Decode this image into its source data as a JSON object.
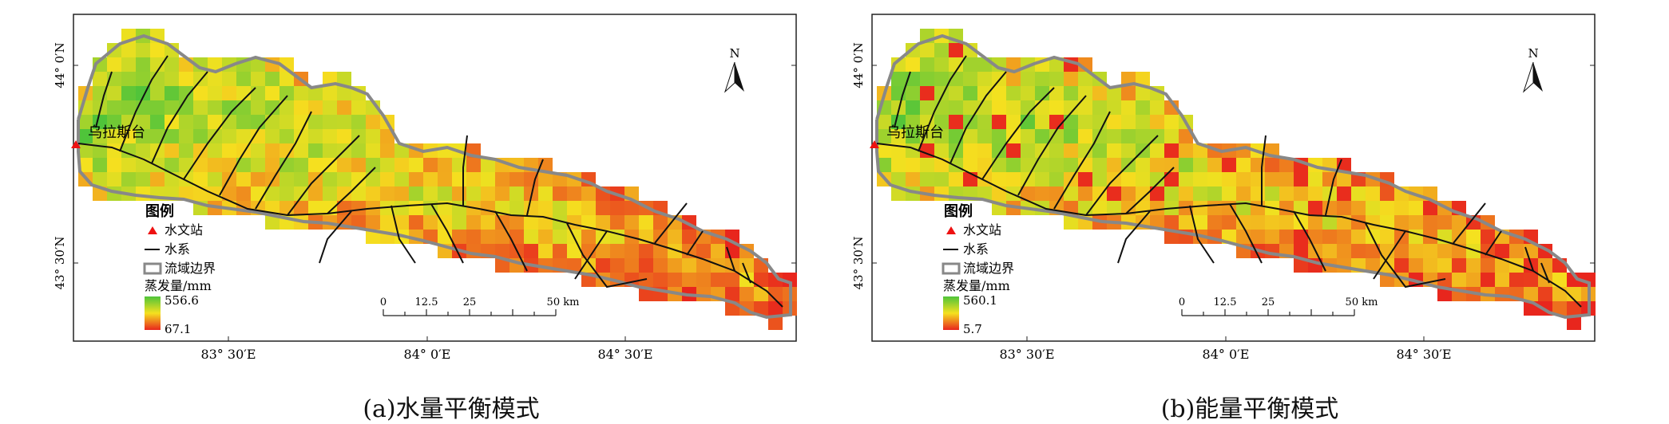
{
  "panels": [
    {
      "id": "a",
      "caption": "(a)水量平衡模式",
      "station_name": "乌拉斯台",
      "north_label": "N",
      "lat_labels": [
        "44° 0′N",
        "43° 30′N"
      ],
      "lon_labels": [
        "83° 30′E",
        "84° 0′E",
        "84° 30′E"
      ],
      "legend": {
        "title": "图例",
        "station": "水文站",
        "river": "水系",
        "boundary": "流域边界",
        "ramp_title": "蒸发量/mm",
        "max": "556.6",
        "min": "67.1"
      },
      "scale_bar": {
        "labels": [
          "0",
          "12.5",
          "25",
          "50 km"
        ]
      },
      "colors": {
        "low": "#e8261d",
        "mid": "#f5e11f",
        "high": "#4fc43a"
      },
      "hot_bias": 0.0
    },
    {
      "id": "b",
      "caption": "(b)能量平衡模式",
      "station_name": "乌拉斯台",
      "north_label": "N",
      "lat_labels": [
        "44° 0′N",
        "43° 30′N"
      ],
      "lon_labels": [
        "83° 30′E",
        "84° 0′E",
        "84° 30′E"
      ],
      "legend": {
        "title": "图例",
        "station": "水文站",
        "river": "水系",
        "boundary": "流域边界",
        "ramp_title": "蒸发量/mm",
        "max": "560.1",
        "min": "5.7"
      },
      "scale_bar": {
        "labels": [
          "0",
          "12.5",
          "25",
          "50 km"
        ]
      },
      "colors": {
        "low": "#e8261d",
        "mid": "#f5e11f",
        "high": "#4fc43a"
      },
      "hot_bias": 0.35
    }
  ]
}
